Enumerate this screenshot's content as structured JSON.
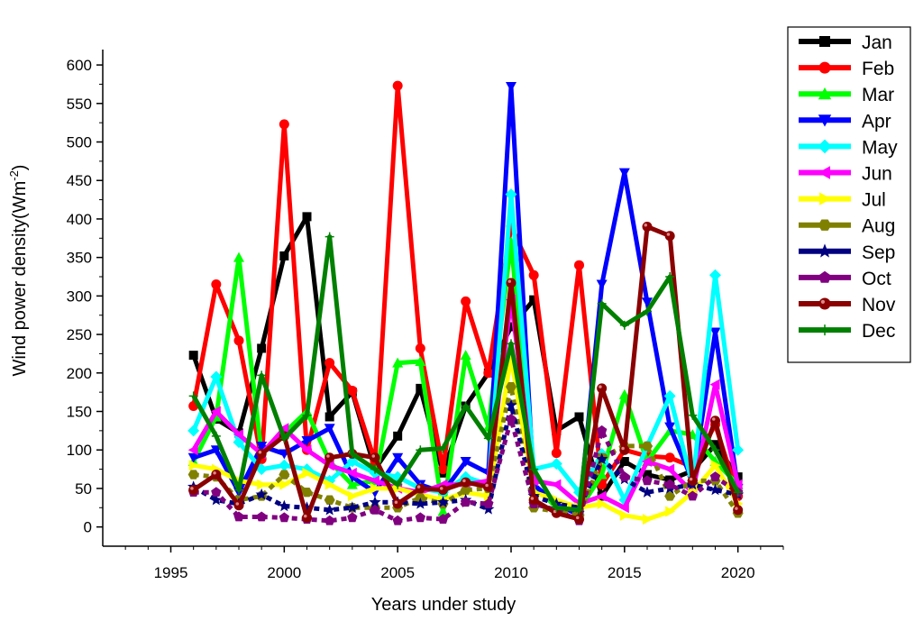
{
  "chart_data": {
    "type": "line",
    "xlabel": "Years under study",
    "ylabel": "Wind power density(Wm",
    "ylabel_sup": "-2",
    "ylabel_close": ")",
    "xlim": [
      1992,
      2022
    ],
    "ylim": [
      -25,
      620
    ],
    "x_ticks": [
      1995,
      2000,
      2005,
      2010,
      2015,
      2020
    ],
    "y_ticks": [
      0,
      50,
      100,
      150,
      200,
      250,
      300,
      350,
      400,
      450,
      500,
      550,
      600
    ],
    "legend_position": "top-right outside",
    "grid": false,
    "x": [
      1996,
      1997,
      1998,
      1999,
      2000,
      2001,
      2002,
      2003,
      2004,
      2005,
      2006,
      2007,
      2008,
      2009,
      2010,
      2011,
      2012,
      2013,
      2014,
      2015,
      2016,
      2017,
      2018,
      2019,
      2020
    ],
    "series": [
      {
        "name": "Jan",
        "color": "#000000",
        "marker": "square",
        "values": [
          223,
          140,
          122,
          232,
          352,
          403,
          143,
          175,
          75,
          118,
          180,
          70,
          157,
          200,
          260,
          295,
          125,
          143,
          40,
          85,
          68,
          61,
          73,
          107,
          65
        ]
      },
      {
        "name": "Feb",
        "color": "#ff0000",
        "marker": "circle",
        "values": [
          157,
          315,
          242,
          88,
          523,
          100,
          213,
          177,
          85,
          573,
          232,
          75,
          293,
          200,
          390,
          327,
          96,
          340,
          55,
          100,
          92,
          90,
          78,
          133,
          40
        ]
      },
      {
        "name": "Mar",
        "color": "#00ff00",
        "marker": "triangle-up",
        "values": [
          85,
          143,
          350,
          95,
          122,
          150,
          85,
          55,
          60,
          213,
          215,
          20,
          223,
          130,
          370,
          55,
          25,
          22,
          68,
          172,
          85,
          125,
          120,
          85,
          55
        ]
      },
      {
        "name": "Apr",
        "color": "#0000ff",
        "marker": "triangle-down",
        "values": [
          90,
          100,
          45,
          105,
          95,
          112,
          128,
          65,
          45,
          90,
          55,
          45,
          85,
          70,
          572,
          55,
          30,
          15,
          315,
          460,
          292,
          130,
          60,
          253,
          50
        ]
      },
      {
        "name": "May",
        "color": "#00ffff",
        "marker": "diamond",
        "values": [
          125,
          195,
          110,
          75,
          80,
          75,
          60,
          85,
          70,
          65,
          50,
          45,
          65,
          55,
          432,
          75,
          82,
          45,
          95,
          35,
          105,
          170,
          55,
          327,
          100
        ]
      },
      {
        "name": "Jun",
        "color": "#ff00ff",
        "marker": "triangle-left",
        "values": [
          100,
          150,
          120,
          95,
          128,
          100,
          80,
          70,
          60,
          50,
          45,
          55,
          55,
          60,
          295,
          60,
          55,
          30,
          40,
          25,
          85,
          75,
          45,
          185,
          55
        ]
      },
      {
        "name": "Jul",
        "color": "#ffff00",
        "marker": "triangle-right",
        "values": [
          80,
          75,
          60,
          55,
          55,
          70,
          55,
          40,
          50,
          50,
          42,
          35,
          45,
          40,
          220,
          45,
          35,
          25,
          30,
          15,
          10,
          20,
          45,
          80,
          30
        ]
      },
      {
        "name": "Aug",
        "color": "#808000",
        "marker": "hexagon",
        "values": [
          68,
          65,
          35,
          40,
          68,
          45,
          35,
          25,
          25,
          25,
          38,
          30,
          48,
          50,
          182,
          25,
          20,
          15,
          90,
          105,
          105,
          40,
          60,
          60,
          18
        ]
      },
      {
        "name": "Sep",
        "color": "#000080",
        "marker": "star",
        "values": [
          52,
          35,
          30,
          42,
          27,
          25,
          22,
          25,
          32,
          32,
          30,
          32,
          35,
          23,
          158,
          40,
          30,
          25,
          88,
          62,
          45,
          50,
          55,
          48,
          42
        ]
      },
      {
        "name": "Oct",
        "color": "#800080",
        "marker": "pentagon",
        "values": [
          45,
          45,
          13,
          13,
          12,
          10,
          8,
          12,
          22,
          8,
          12,
          10,
          32,
          30,
          140,
          30,
          22,
          8,
          125,
          65,
          60,
          55,
          40,
          65,
          45
        ]
      },
      {
        "name": "Nov",
        "color": "#8b0000",
        "marker": "ball",
        "values": [
          48,
          68,
          28,
          95,
          118,
          12,
          90,
          95,
          90,
          30,
          50,
          48,
          58,
          52,
          317,
          35,
          18,
          10,
          180,
          100,
          390,
          378,
          60,
          138,
          22
        ]
      },
      {
        "name": "Dec",
        "color": "#008000",
        "marker": "plus",
        "values": [
          170,
          118,
          48,
          197,
          115,
          145,
          377,
          95,
          75,
          55,
          100,
          102,
          157,
          115,
          238,
          75,
          25,
          22,
          290,
          262,
          280,
          325,
          145,
          100,
          45
        ]
      }
    ]
  }
}
